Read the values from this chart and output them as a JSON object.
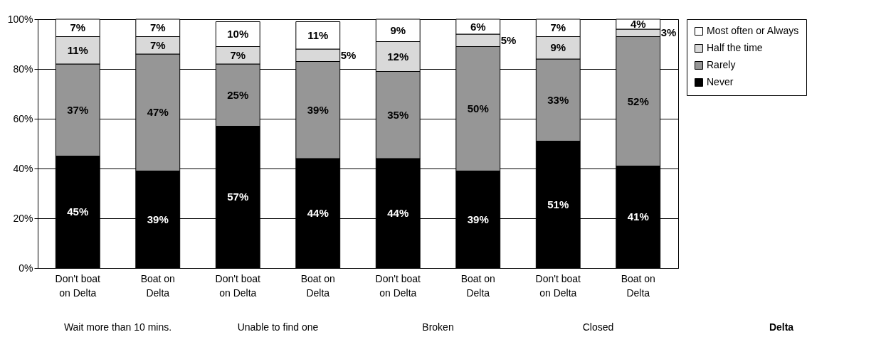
{
  "chart_data": {
    "type": "bar",
    "stacked": true,
    "categories": [
      "Don't boat on Delta",
      "Boat on Delta",
      "Don't boat on Delta",
      "Boat on Delta",
      "Don't boat on Delta",
      "Boat on Delta",
      "Don't boat on Delta",
      "Boat on Delta"
    ],
    "annotations": [
      "Wait more than 10 mins.",
      "Unable to find one",
      "Broken",
      "Closed",
      "Delta"
    ],
    "series": [
      {
        "name": "Never",
        "color": "#000000",
        "values": [
          45,
          39,
          57,
          44,
          44,
          39,
          51,
          41
        ],
        "value_labels": [
          "45%",
          "39%",
          "57%",
          "44%",
          "44%",
          "39%",
          "51%",
          "41%"
        ]
      },
      {
        "name": "Rarely",
        "color": "#969696",
        "values": [
          37,
          47,
          25,
          39,
          35,
          50,
          33,
          52
        ],
        "value_labels": [
          "37%",
          "47%",
          "25%",
          "39%",
          "35%",
          "50%",
          "33%",
          "52%"
        ]
      },
      {
        "name": "Half the time",
        "color": "#d9d9d9",
        "values": [
          11,
          7,
          7,
          5,
          12,
          5,
          9,
          3
        ],
        "value_labels": [
          "11%",
          "7%",
          "7%",
          "5%",
          "12%",
          "5%",
          "9%",
          "3%"
        ]
      },
      {
        "name": "Most often or Always",
        "color": "#ffffff",
        "values": [
          7,
          7,
          10,
          11,
          9,
          6,
          7,
          4
        ],
        "value_labels": [
          "7%",
          "7%",
          "10%",
          "11%",
          "9%",
          "6%",
          "7%",
          "4%"
        ]
      }
    ],
    "ylim": [
      0,
      100
    ],
    "yticks": [
      {
        "value": 0,
        "label": "0%"
      },
      {
        "value": 20,
        "label": "20%"
      },
      {
        "value": 40,
        "label": "40%"
      },
      {
        "value": 60,
        "label": "60%"
      },
      {
        "value": 80,
        "label": "80%"
      },
      {
        "value": 100,
        "label": "100%"
      }
    ],
    "grid": "y",
    "legend": "right"
  }
}
